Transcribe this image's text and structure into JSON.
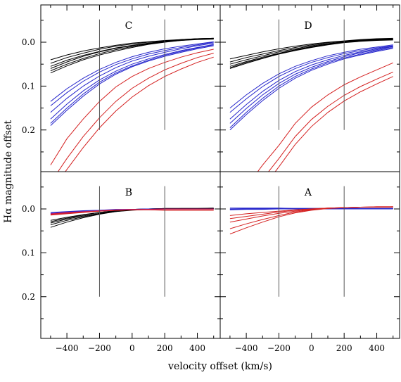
{
  "chart_data": {
    "type": "line",
    "xlabel": "velocity offset (km/s)",
    "ylabel": "Hα magnitude offset",
    "xlim": [
      -560,
      540
    ],
    "ylim_top_row": [
      -0.085,
      0.295
    ],
    "ylim_bottom_row": [
      -0.085,
      0.295
    ],
    "y_inverted": true,
    "x_ticks": [
      -400,
      -200,
      0,
      200,
      400
    ],
    "y_ticks": [
      0.0,
      0.1,
      0.2
    ],
    "x_tick_labels": [
      "−400",
      "−200",
      "0",
      "200",
      "400"
    ],
    "y_tick_labels": [
      "0.0",
      "0.1",
      "0.2"
    ],
    "vertical_markers": [
      -200,
      200
    ],
    "grid": false,
    "colors": {
      "black": "#000000",
      "blue": "#2626cc",
      "red": "#d42020",
      "magenta": "#c0187a",
      "marker": "#555555"
    },
    "x": [
      -500,
      -400,
      -300,
      -200,
      -100,
      0,
      100,
      200,
      300,
      400,
      500
    ],
    "panels": [
      {
        "label": "C",
        "row": 0,
        "col": 0,
        "series": [
          {
            "color": "black",
            "values": [
              0.06,
              0.045,
              0.032,
              0.022,
              0.014,
              0.008,
              0.003,
              -0.002,
              -0.005,
              -0.008,
              -0.009
            ]
          },
          {
            "color": "black",
            "values": [
              0.065,
              0.05,
              0.037,
              0.026,
              0.017,
              0.01,
              0.004,
              -0.001,
              -0.004,
              -0.007,
              -0.008
            ]
          },
          {
            "color": "black",
            "values": [
              0.07,
              0.054,
              0.04,
              0.029,
              0.02,
              0.012,
              0.005,
              0.0,
              -0.004,
              -0.006,
              -0.007
            ]
          },
          {
            "color": "black",
            "values": [
              0.055,
              0.041,
              0.03,
              0.021,
              0.013,
              0.007,
              0.002,
              -0.002,
              -0.005,
              -0.007,
              -0.008
            ]
          },
          {
            "color": "black",
            "values": [
              0.048,
              0.035,
              0.025,
              0.016,
              0.009,
              0.004,
              0.0,
              -0.003,
              -0.006,
              -0.008,
              -0.009
            ]
          },
          {
            "color": "black",
            "values": [
              0.04,
              0.029,
              0.02,
              0.013,
              0.007,
              0.002,
              -0.001,
              -0.004,
              -0.006,
              -0.008,
              -0.009
            ]
          },
          {
            "color": "blue",
            "values": [
              0.185,
              0.15,
              0.118,
              0.091,
              0.07,
              0.054,
              0.041,
              0.03,
              0.021,
              0.013,
              0.006
            ]
          },
          {
            "color": "blue",
            "values": [
              0.175,
              0.141,
              0.111,
              0.086,
              0.066,
              0.05,
              0.038,
              0.028,
              0.019,
              0.012,
              0.005
            ]
          },
          {
            "color": "blue",
            "values": [
              0.16,
              0.128,
              0.1,
              0.077,
              0.058,
              0.043,
              0.032,
              0.023,
              0.015,
              0.008,
              0.002
            ]
          },
          {
            "color": "blue",
            "values": [
              0.145,
              0.115,
              0.089,
              0.068,
              0.051,
              0.038,
              0.027,
              0.019,
              0.012,
              0.006,
              0.0
            ]
          },
          {
            "color": "blue",
            "values": [
              0.135,
              0.106,
              0.082,
              0.062,
              0.046,
              0.033,
              0.023,
              0.015,
              0.009,
              0.004,
              -0.001
            ]
          },
          {
            "color": "blue",
            "values": [
              0.19,
              0.155,
              0.123,
              0.095,
              0.073,
              0.056,
              0.043,
              0.032,
              0.023,
              0.015,
              0.008
            ]
          },
          {
            "color": "red",
            "values": [
              0.28,
              0.22,
              0.175,
              0.135,
              0.102,
              0.078,
              0.06,
              0.046,
              0.034,
              0.024,
              0.016
            ]
          },
          {
            "color": "red",
            "values": [
              0.32,
              0.265,
              0.215,
              0.172,
              0.135,
              0.105,
              0.082,
              0.063,
              0.048,
              0.035,
              0.025
            ]
          },
          {
            "color": "red",
            "values": [
              0.34,
              0.29,
              0.24,
              0.195,
              0.157,
              0.125,
              0.099,
              0.078,
              0.061,
              0.046,
              0.034
            ]
          }
        ]
      },
      {
        "label": "D",
        "row": 0,
        "col": 1,
        "series": [
          {
            "color": "black",
            "values": [
              0.055,
              0.044,
              0.034,
              0.025,
              0.017,
              0.01,
              0.004,
              0.0,
              -0.003,
              -0.005,
              -0.006
            ]
          },
          {
            "color": "black",
            "values": [
              0.06,
              0.048,
              0.037,
              0.027,
              0.019,
              0.012,
              0.006,
              0.001,
              -0.002,
              -0.004,
              -0.005
            ]
          },
          {
            "color": "black",
            "values": [
              0.05,
              0.04,
              0.031,
              0.022,
              0.015,
              0.008,
              0.003,
              -0.001,
              -0.004,
              -0.006,
              -0.007
            ]
          },
          {
            "color": "black",
            "values": [
              0.045,
              0.035,
              0.027,
              0.019,
              0.012,
              0.006,
              0.001,
              -0.002,
              -0.005,
              -0.007,
              -0.008
            ]
          },
          {
            "color": "black",
            "values": [
              0.058,
              0.046,
              0.036,
              0.026,
              0.018,
              0.011,
              0.005,
              0.0,
              -0.003,
              -0.005,
              -0.006
            ]
          },
          {
            "color": "black",
            "values": [
              0.038,
              0.03,
              0.022,
              0.015,
              0.009,
              0.004,
              0.0,
              -0.003,
              -0.006,
              -0.008,
              -0.009
            ]
          },
          {
            "color": "blue",
            "values": [
              0.195,
              0.16,
              0.128,
              0.1,
              0.078,
              0.061,
              0.047,
              0.036,
              0.027,
              0.019,
              0.012
            ]
          },
          {
            "color": "blue",
            "values": [
              0.185,
              0.151,
              0.12,
              0.094,
              0.073,
              0.057,
              0.044,
              0.033,
              0.024,
              0.017,
              0.01
            ]
          },
          {
            "color": "blue",
            "values": [
              0.175,
              0.142,
              0.112,
              0.087,
              0.067,
              0.052,
              0.04,
              0.03,
              0.022,
              0.015,
              0.009
            ]
          },
          {
            "color": "blue",
            "values": [
              0.16,
              0.129,
              0.101,
              0.078,
              0.06,
              0.046,
              0.035,
              0.026,
              0.019,
              0.013,
              0.008
            ]
          },
          {
            "color": "blue",
            "values": [
              0.15,
              0.12,
              0.094,
              0.072,
              0.055,
              0.042,
              0.031,
              0.023,
              0.016,
              0.011,
              0.006
            ]
          },
          {
            "color": "blue",
            "values": [
              0.2,
              0.165,
              0.133,
              0.105,
              0.082,
              0.064,
              0.05,
              0.038,
              0.029,
              0.021,
              0.014
            ]
          },
          {
            "color": "red",
            "values": [
              0.38,
              0.33,
              0.28,
              0.235,
              0.185,
              0.148,
              0.12,
              0.097,
              0.079,
              0.063,
              0.047
            ]
          },
          {
            "color": "red",
            "values": [
              0.42,
              0.365,
              0.312,
              0.265,
              0.215,
              0.176,
              0.146,
              0.121,
              0.101,
              0.084,
              0.068
            ]
          },
          {
            "color": "red",
            "values": [
              0.44,
              0.385,
              0.332,
              0.284,
              0.233,
              0.192,
              0.16,
              0.134,
              0.113,
              0.095,
              0.078
            ]
          }
        ]
      },
      {
        "label": "B",
        "row": 1,
        "col": 0,
        "series": [
          {
            "color": "black",
            "values": [
              0.036,
              0.026,
              0.018,
              0.011,
              0.006,
              0.003,
              0.001,
              0.0,
              0.0,
              0.0,
              0.0
            ]
          },
          {
            "color": "black",
            "values": [
              0.032,
              0.023,
              0.016,
              0.01,
              0.005,
              0.002,
              0.0,
              0.0,
              -0.001,
              -0.001,
              -0.001
            ]
          },
          {
            "color": "black",
            "values": [
              0.029,
              0.021,
              0.014,
              0.008,
              0.004,
              0.001,
              0.0,
              -0.001,
              -0.001,
              -0.001,
              -0.001
            ]
          },
          {
            "color": "black",
            "values": [
              0.026,
              0.019,
              0.013,
              0.008,
              0.004,
              0.001,
              0.0,
              -0.001,
              -0.001,
              -0.001,
              -0.002
            ]
          },
          {
            "color": "black",
            "values": [
              0.042,
              0.03,
              0.02,
              0.012,
              0.006,
              0.002,
              0.0,
              -0.001,
              -0.001,
              -0.001,
              -0.001
            ]
          },
          {
            "color": "blue",
            "values": [
              0.01,
              0.007,
              0.005,
              0.003,
              0.002,
              0.001,
              0.0,
              0.0,
              0.0,
              0.0,
              0.0
            ]
          },
          {
            "color": "blue",
            "values": [
              0.008,
              0.006,
              0.004,
              0.003,
              0.001,
              0.001,
              0.0,
              0.0,
              0.0,
              0.0,
              0.0
            ]
          },
          {
            "color": "magenta",
            "values": [
              0.013,
              0.01,
              0.007,
              0.005,
              0.003,
              0.002,
              0.001,
              0.0,
              0.0,
              0.0,
              0.0
            ]
          },
          {
            "color": "magenta",
            "values": [
              0.011,
              0.008,
              0.006,
              0.004,
              0.002,
              0.001,
              0.001,
              0.0,
              0.0,
              0.0,
              0.0
            ]
          },
          {
            "color": "red",
            "values": [
              0.014,
              0.011,
              0.008,
              0.005,
              0.003,
              0.002,
              0.002,
              0.002,
              0.002,
              0.002,
              0.002
            ]
          },
          {
            "color": "red",
            "values": [
              0.012,
              0.009,
              0.007,
              0.005,
              0.003,
              0.002,
              0.002,
              0.003,
              0.003,
              0.003,
              0.003
            ]
          }
        ]
      },
      {
        "label": "A",
        "row": 1,
        "col": 1,
        "series": [
          {
            "color": "black",
            "values": [
              0.0,
              0.0,
              0.0,
              -0.001,
              -0.001,
              -0.001,
              -0.001,
              -0.001,
              -0.001,
              -0.001,
              -0.001
            ]
          },
          {
            "color": "blue",
            "values": [
              0.002,
              0.001,
              0.001,
              0.0,
              0.0,
              0.0,
              0.0,
              0.0,
              0.0,
              0.0,
              0.0
            ]
          },
          {
            "color": "blue",
            "values": [
              0.0,
              -0.001,
              -0.001,
              -0.001,
              -0.001,
              -0.001,
              -0.001,
              -0.001,
              -0.001,
              -0.001,
              -0.001
            ]
          },
          {
            "color": "blue",
            "values": [
              -0.002,
              -0.002,
              -0.002,
              -0.002,
              -0.001,
              -0.001,
              -0.001,
              -0.001,
              -0.001,
              -0.001,
              -0.001
            ]
          },
          {
            "color": "blue",
            "values": [
              0.001,
              0.0,
              0.0,
              0.0,
              -0.001,
              -0.001,
              -0.001,
              -0.001,
              -0.001,
              -0.001,
              -0.001
            ]
          },
          {
            "color": "red",
            "values": [
              0.057,
              0.043,
              0.03,
              0.018,
              0.009,
              0.003,
              -0.001,
              -0.003,
              -0.004,
              -0.004,
              -0.004
            ]
          },
          {
            "color": "red",
            "values": [
              0.045,
              0.034,
              0.024,
              0.015,
              0.007,
              0.002,
              -0.001,
              -0.003,
              -0.004,
              -0.004,
              -0.005
            ]
          },
          {
            "color": "red",
            "values": [
              0.03,
              0.023,
              0.016,
              0.01,
              0.005,
              0.001,
              -0.002,
              -0.003,
              -0.004,
              -0.005,
              -0.005
            ]
          },
          {
            "color": "red",
            "values": [
              0.022,
              0.017,
              0.012,
              0.007,
              0.003,
              0.0,
              -0.002,
              -0.003,
              -0.004,
              -0.005,
              -0.005
            ]
          },
          {
            "color": "red",
            "values": [
              0.015,
              0.011,
              0.008,
              0.005,
              0.002,
              0.0,
              -0.002,
              -0.003,
              -0.004,
              -0.004,
              -0.005
            ]
          }
        ]
      }
    ]
  }
}
